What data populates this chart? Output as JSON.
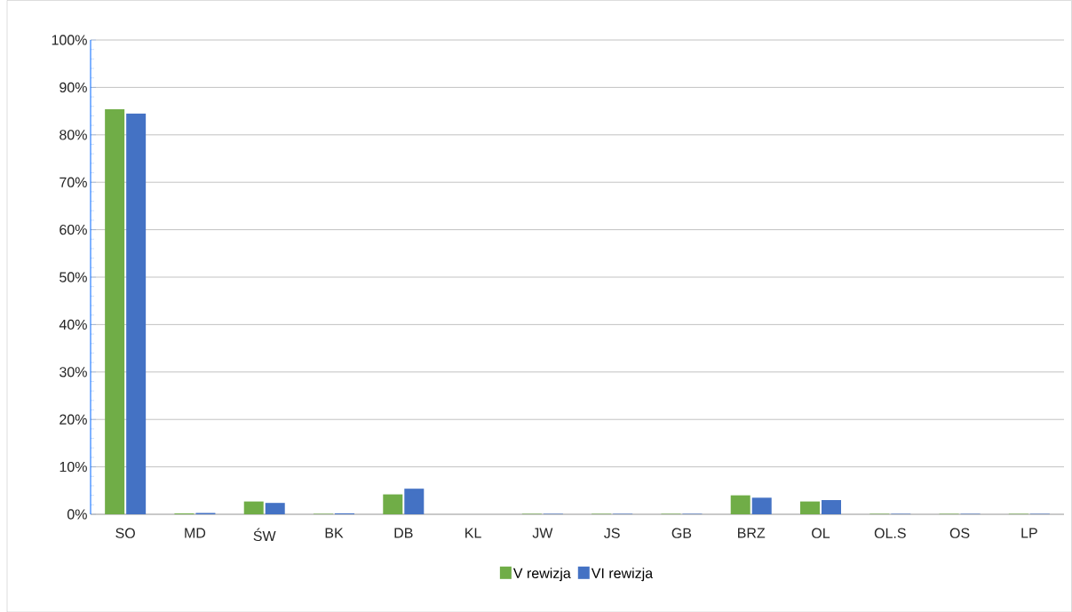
{
  "chart_data": {
    "type": "bar",
    "categories": [
      "SO",
      "MD",
      "ŚW",
      "BK",
      "DB",
      "KL",
      "JW",
      "JS",
      "GB",
      "BRZ",
      "OL",
      "OL.S",
      "OS",
      "LP"
    ],
    "series": [
      {
        "name": "V rewizja",
        "color": "#70ad47",
        "values": [
          85.4,
          0.2,
          2.7,
          0.1,
          4.2,
          0,
          0.1,
          0.1,
          0.1,
          4.0,
          2.7,
          0.1,
          0.1,
          0.1
        ]
      },
      {
        "name": "VI rewizja",
        "color": "#4472c4",
        "values": [
          84.5,
          0.3,
          2.4,
          0.2,
          5.4,
          0,
          0.1,
          0.1,
          0.1,
          3.5,
          3.0,
          0.1,
          0.1,
          0.1
        ]
      }
    ],
    "ylim": [
      0,
      100
    ],
    "yticks": [
      {
        "value": 0,
        "label": "0%"
      },
      {
        "value": 10,
        "label": "10%"
      },
      {
        "value": 20,
        "label": "20%"
      },
      {
        "value": 30,
        "label": "30%"
      },
      {
        "value": 40,
        "label": "40%"
      },
      {
        "value": 50,
        "label": "50%"
      },
      {
        "value": 60,
        "label": "60%"
      },
      {
        "value": 70,
        "label": "70%"
      },
      {
        "value": 80,
        "label": "80%"
      },
      {
        "value": 90,
        "label": "90%"
      },
      {
        "value": 100,
        "label": "100%"
      }
    ],
    "grid": "y",
    "legend": "bottom"
  }
}
